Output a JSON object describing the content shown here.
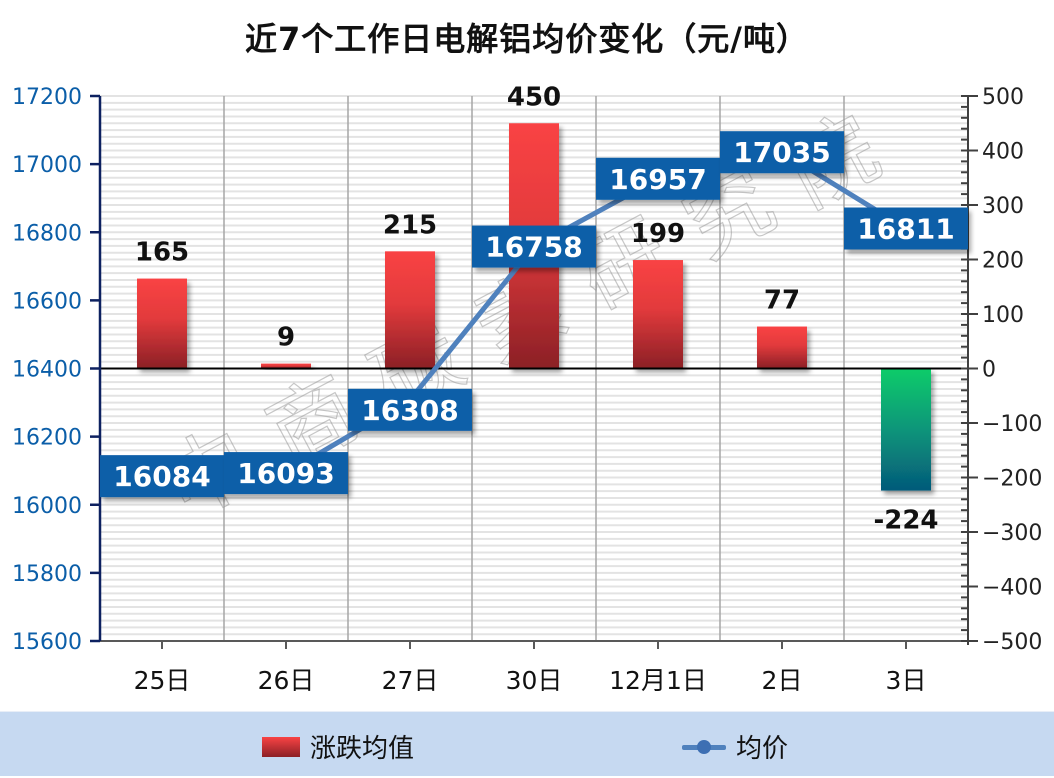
{
  "title": "近7个工作日电解铝均价变化（元/吨）",
  "watermark": "中商碳素研究院",
  "legend": {
    "bar_label": "涨跌均值",
    "line_label": "均价"
  },
  "colors": {
    "bar_up_top": "#f94344",
    "bar_up_bottom": "#8b2026",
    "bar_down_top": "#0fcc6a",
    "bar_down_bottom": "#055a7a",
    "line": "#4f81bd",
    "label_box": "#0b5ea8",
    "left_axis_text": "#0b5ea8",
    "legend_bg": "#c6d9f1"
  },
  "chart_data": {
    "type": "bar+line",
    "title": "近7个工作日电解铝均价变化（元/吨）",
    "categories": [
      "25日",
      "26日",
      "27日",
      "30日",
      "12月1日",
      "2日",
      "3日"
    ],
    "series": [
      {
        "name": "涨跌均值",
        "type": "bar",
        "axis": "right",
        "values": [
          165,
          9,
          215,
          450,
          199,
          77,
          -224
        ]
      },
      {
        "name": "均价",
        "type": "line",
        "axis": "left",
        "values": [
          16084,
          16093,
          16308,
          16758,
          16957,
          17035,
          16811
        ]
      }
    ],
    "left_axis": {
      "min": 15600,
      "max": 17200,
      "step": 200,
      "ticks": [
        "17200",
        "17000",
        "16800",
        "16600",
        "16400",
        "16200",
        "16000",
        "15800",
        "15600"
      ]
    },
    "right_axis": {
      "min": -500,
      "max": 500,
      "step": 100,
      "ticks": [
        "500",
        "400",
        "300",
        "200",
        "100",
        "0",
        "−100",
        "−200",
        "−300",
        "−400",
        "−500"
      ]
    },
    "xlabel": "",
    "ylabel": "",
    "grid": true,
    "legend_position": "bottom"
  }
}
